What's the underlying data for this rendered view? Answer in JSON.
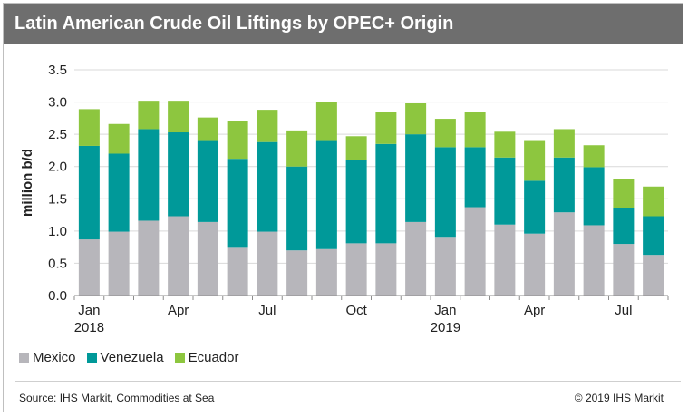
{
  "title": "Latin American Crude Oil Liftings by OPEC+ Origin",
  "source": "Source: IHS Markit, Commodities at Sea",
  "copyright": "© 2019 IHS Markit",
  "chart_data": {
    "type": "bar",
    "stacked": true,
    "ylabel": "million b/d",
    "ylim": [
      0,
      3.5
    ],
    "yticks": [
      0.0,
      0.5,
      1.0,
      1.5,
      2.0,
      2.5,
      3.0,
      3.5
    ],
    "ytick_labels": [
      "0.0",
      "0.5",
      "1.0",
      "1.5",
      "2.0",
      "2.5",
      "3.0",
      "3.5"
    ],
    "grid": true,
    "legend_position": "bottom-left",
    "categories": [
      "Jan 2018",
      "Feb 2018",
      "Mar 2018",
      "Apr 2018",
      "May 2018",
      "Jun 2018",
      "Jul 2018",
      "Aug 2018",
      "Sep 2018",
      "Oct 2018",
      "Nov 2018",
      "Dec 2018",
      "Jan 2019",
      "Feb 2019",
      "Mar 2019",
      "Apr 2019",
      "May 2019",
      "Jun 2019",
      "Jul 2019",
      "Aug 2019"
    ],
    "x_tick_labels": [
      {
        "index": 0,
        "line1": "Jan",
        "line2": "2018"
      },
      {
        "index": 3,
        "line1": "Apr",
        "line2": ""
      },
      {
        "index": 6,
        "line1": "Jul",
        "line2": ""
      },
      {
        "index": 9,
        "line1": "Oct",
        "line2": ""
      },
      {
        "index": 12,
        "line1": "Jan",
        "line2": "2019"
      },
      {
        "index": 15,
        "line1": "Apr",
        "line2": ""
      },
      {
        "index": 18,
        "line1": "Jul",
        "line2": ""
      }
    ],
    "series": [
      {
        "name": "Mexico",
        "color": "#b7b6bb",
        "values": [
          0.87,
          0.99,
          1.16,
          1.23,
          1.14,
          0.74,
          0.99,
          0.7,
          0.72,
          0.81,
          0.81,
          1.14,
          0.91,
          1.37,
          1.1,
          0.96,
          1.29,
          1.09,
          0.8,
          0.63
        ]
      },
      {
        "name": "Venezuela",
        "color": "#009999",
        "values": [
          1.45,
          1.21,
          1.42,
          1.3,
          1.27,
          1.38,
          1.39,
          1.3,
          1.69,
          1.29,
          1.54,
          1.36,
          1.39,
          0.93,
          1.04,
          0.82,
          0.85,
          0.9,
          0.56,
          0.6
        ]
      },
      {
        "name": "Ecuador",
        "color": "#8dc63f",
        "values": [
          0.57,
          0.46,
          0.44,
          0.49,
          0.35,
          0.58,
          0.5,
          0.56,
          0.59,
          0.37,
          0.49,
          0.48,
          0.44,
          0.55,
          0.4,
          0.63,
          0.44,
          0.34,
          0.44,
          0.46
        ]
      }
    ]
  }
}
